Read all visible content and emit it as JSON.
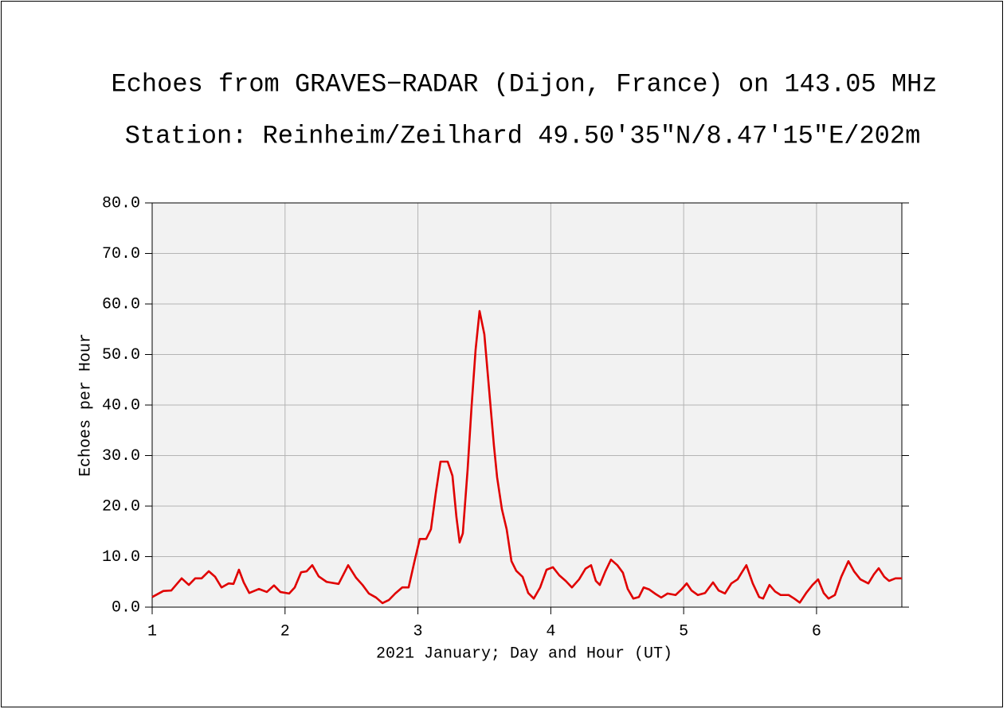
{
  "chart_data": {
    "type": "line",
    "title": "Echoes from GRAVES−RADAR (Dijon, France) on 143.05 MHz",
    "subtitle": "Station: Reinheim/Zeilhard 49.50′35″N/8.47′15″E/202m",
    "xlabel": "2021 January; Day and Hour (UT)",
    "ylabel": "Echoes per Hour",
    "x": [
      1.0,
      1.084,
      1.144,
      1.222,
      1.276,
      1.324,
      1.372,
      1.426,
      1.474,
      1.522,
      1.576,
      1.612,
      1.653,
      1.689,
      1.731,
      1.803,
      1.863,
      1.917,
      1.965,
      2.031,
      2.073,
      2.121,
      2.163,
      2.205,
      2.253,
      2.313,
      2.403,
      2.475,
      2.535,
      2.583,
      2.631,
      2.685,
      2.733,
      2.781,
      2.829,
      2.882,
      2.93,
      2.972,
      3.014,
      3.062,
      3.098,
      3.134,
      3.17,
      3.224,
      3.26,
      3.29,
      3.314,
      3.338,
      3.374,
      3.404,
      3.434,
      3.464,
      3.5,
      3.536,
      3.572,
      3.596,
      3.632,
      3.668,
      3.704,
      3.74,
      3.788,
      3.83,
      3.872,
      3.92,
      3.968,
      4.016,
      4.064,
      4.112,
      4.159,
      4.213,
      4.261,
      4.303,
      4.339,
      4.369,
      4.411,
      4.453,
      4.501,
      4.543,
      4.579,
      4.621,
      4.663,
      4.699,
      4.741,
      4.783,
      4.831,
      4.879,
      4.939,
      4.987,
      5.023,
      5.059,
      5.107,
      5.161,
      5.221,
      5.263,
      5.311,
      5.359,
      5.406,
      5.436,
      5.472,
      5.52,
      5.568,
      5.598,
      5.646,
      5.688,
      5.73,
      5.79,
      5.832,
      5.874,
      5.922,
      5.97,
      6.012,
      6.054,
      6.09,
      6.138,
      6.186,
      6.24,
      6.282,
      6.33,
      6.39,
      6.432,
      6.468,
      6.51,
      6.546,
      6.594,
      6.642
    ],
    "series": [
      {
        "name": "Echoes per Hour",
        "color": "#e00000",
        "values": [
          2.0,
          3.2,
          3.3,
          5.7,
          4.4,
          5.7,
          5.7,
          7.1,
          6.0,
          3.9,
          4.7,
          4.6,
          7.4,
          4.9,
          2.8,
          3.6,
          3.0,
          4.3,
          3.0,
          2.7,
          3.9,
          6.9,
          7.1,
          8.3,
          6.1,
          5.0,
          4.6,
          8.3,
          5.8,
          4.4,
          2.7,
          1.9,
          0.8,
          1.4,
          2.7,
          3.9,
          3.9,
          8.8,
          13.5,
          13.5,
          15.4,
          22.5,
          28.8,
          28.8,
          26.0,
          17.8,
          12.8,
          14.6,
          27.2,
          39.8,
          50.9,
          58.6,
          54.0,
          43.0,
          32.0,
          25.7,
          19.4,
          15.4,
          9.1,
          7.2,
          6.0,
          2.8,
          1.7,
          3.9,
          7.4,
          7.9,
          6.3,
          5.2,
          3.9,
          5.5,
          7.6,
          8.3,
          5.2,
          4.4,
          7.1,
          9.4,
          8.3,
          6.8,
          3.6,
          1.7,
          2.0,
          3.9,
          3.5,
          2.7,
          1.9,
          2.7,
          2.4,
          3.6,
          4.7,
          3.3,
          2.4,
          2.8,
          4.9,
          3.3,
          2.7,
          4.7,
          5.5,
          6.8,
          8.3,
          4.7,
          2.0,
          1.7,
          4.4,
          3.1,
          2.4,
          2.4,
          1.7,
          0.9,
          2.8,
          4.4,
          5.5,
          2.8,
          1.7,
          2.4,
          6.0,
          9.1,
          7.1,
          5.5,
          4.7,
          6.5,
          7.7,
          6.0,
          5.2,
          5.7,
          5.7
        ]
      }
    ],
    "xlim": [
      1,
      6.642
    ],
    "xticks": [
      1,
      2,
      3,
      4,
      5,
      6
    ],
    "ylim": [
      0,
      80
    ],
    "yticks": [
      {
        "value": 0,
        "label": "0.0"
      },
      {
        "value": 10,
        "label": "10.0"
      },
      {
        "value": 20,
        "label": "20.0"
      },
      {
        "value": 30,
        "label": "30.0"
      },
      {
        "value": 40,
        "label": "40.0"
      },
      {
        "value": 50,
        "label": "50.0"
      },
      {
        "value": 60,
        "label": "60.0"
      },
      {
        "value": 70,
        "label": "70.0"
      },
      {
        "value": 80,
        "label": "80.0"
      }
    ],
    "grid": true
  }
}
